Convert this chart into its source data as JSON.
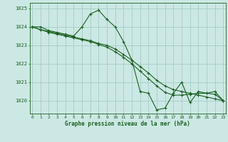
{
  "xlabel": "Graphe pression niveau de la mer (hPa)",
  "bg_color": "#cce8e4",
  "grid_color": "#a8d0cc",
  "line_color": "#1a6020",
  "ylim": [
    1019.3,
    1025.3
  ],
  "xlim": [
    -0.3,
    23.3
  ],
  "yticks": [
    1020,
    1021,
    1022,
    1023,
    1024,
    1025
  ],
  "xticks": [
    0,
    1,
    2,
    3,
    4,
    5,
    6,
    7,
    8,
    9,
    10,
    11,
    12,
    13,
    14,
    15,
    16,
    17,
    18,
    19,
    20,
    21,
    22,
    23
  ],
  "series": [
    {
      "x": [
        0,
        1,
        2,
        3,
        4,
        5,
        6,
        7,
        8,
        9,
        10,
        11,
        12,
        13,
        14,
        15,
        16,
        17,
        18,
        19,
        20,
        21,
        22,
        23
      ],
      "y": [
        1024.0,
        1024.0,
        1023.8,
        1023.7,
        1023.6,
        1023.5,
        1024.0,
        1024.7,
        1024.9,
        1024.4,
        1024.0,
        1023.2,
        1022.2,
        1020.5,
        1020.4,
        1019.5,
        1019.6,
        1020.4,
        1021.0,
        1019.9,
        1020.5,
        1020.4,
        1020.5,
        1020.0
      ]
    },
    {
      "x": [
        0,
        1,
        2,
        3,
        4,
        5,
        6,
        7,
        8,
        9,
        10,
        11,
        12,
        13,
        14,
        15,
        16,
        17,
        18,
        19,
        20,
        21,
        22,
        23
      ],
      "y": [
        1024.0,
        1023.85,
        1023.75,
        1023.65,
        1023.55,
        1023.45,
        1023.35,
        1023.25,
        1023.1,
        1023.0,
        1022.8,
        1022.5,
        1022.2,
        1021.85,
        1021.5,
        1021.1,
        1020.8,
        1020.6,
        1020.5,
        1020.4,
        1020.3,
        1020.2,
        1020.1,
        1020.0
      ]
    },
    {
      "x": [
        0,
        1,
        2,
        3,
        4,
        5,
        6,
        7,
        8,
        9,
        10,
        11,
        12,
        13,
        14,
        15,
        16,
        17,
        18,
        19,
        20,
        21,
        22,
        23
      ],
      "y": [
        1024.0,
        1023.85,
        1023.7,
        1023.6,
        1023.5,
        1023.4,
        1023.3,
        1023.2,
        1023.05,
        1022.9,
        1022.65,
        1022.35,
        1022.0,
        1021.6,
        1021.2,
        1020.8,
        1020.45,
        1020.3,
        1020.3,
        1020.35,
        1020.4,
        1020.4,
        1020.35,
        1020.0
      ]
    }
  ]
}
